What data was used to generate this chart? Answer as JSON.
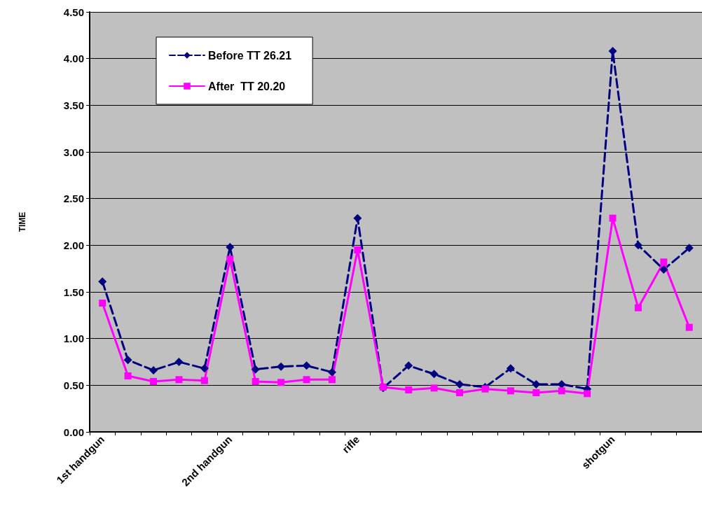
{
  "chart_data": {
    "type": "line",
    "ylabel": "TIME",
    "categories": [
      "1st handgun",
      null,
      null,
      null,
      null,
      "2nd handgun",
      null,
      null,
      null,
      null,
      "rifle",
      null,
      null,
      null,
      null,
      null,
      null,
      null,
      null,
      null,
      "shotgun",
      null,
      null,
      null
    ],
    "series": [
      {
        "name": "Before TT 26.21",
        "color": "#000080",
        "marker": "diamond",
        "line_style": "dashed",
        "values": [
          1.61,
          0.77,
          0.66,
          0.75,
          0.68,
          1.98,
          0.67,
          0.7,
          0.71,
          0.64,
          2.29,
          0.47,
          0.71,
          0.62,
          0.51,
          0.48,
          0.68,
          0.51,
          0.51,
          0.46,
          4.08,
          2.0,
          1.74,
          1.97
        ]
      },
      {
        "name": "After  TT 20.20",
        "color": "#ff00ff",
        "marker": "square",
        "line_style": "solid",
        "values": [
          1.38,
          0.6,
          0.54,
          0.56,
          0.55,
          1.85,
          0.54,
          0.53,
          0.56,
          0.56,
          1.95,
          0.48,
          0.45,
          0.47,
          0.42,
          0.46,
          0.44,
          0.42,
          0.44,
          0.41,
          2.29,
          1.33,
          1.82,
          1.12
        ]
      }
    ],
    "ylim": [
      0,
      4.5
    ],
    "yticks": [
      {
        "value": 0,
        "label": "0.00"
      },
      {
        "value": 0.5,
        "label": "0.50"
      },
      {
        "value": 1,
        "label": "1.00"
      },
      {
        "value": 1.5,
        "label": "1.50"
      },
      {
        "value": 2,
        "label": "2.00"
      },
      {
        "value": 2.5,
        "label": "2.50"
      },
      {
        "value": 3,
        "label": "3.00"
      },
      {
        "value": 3.5,
        "label": "3.50"
      },
      {
        "value": 4,
        "label": "4.00"
      },
      {
        "value": 4.5,
        "label": "4.50"
      }
    ],
    "grid": "y",
    "legend": "top left"
  }
}
